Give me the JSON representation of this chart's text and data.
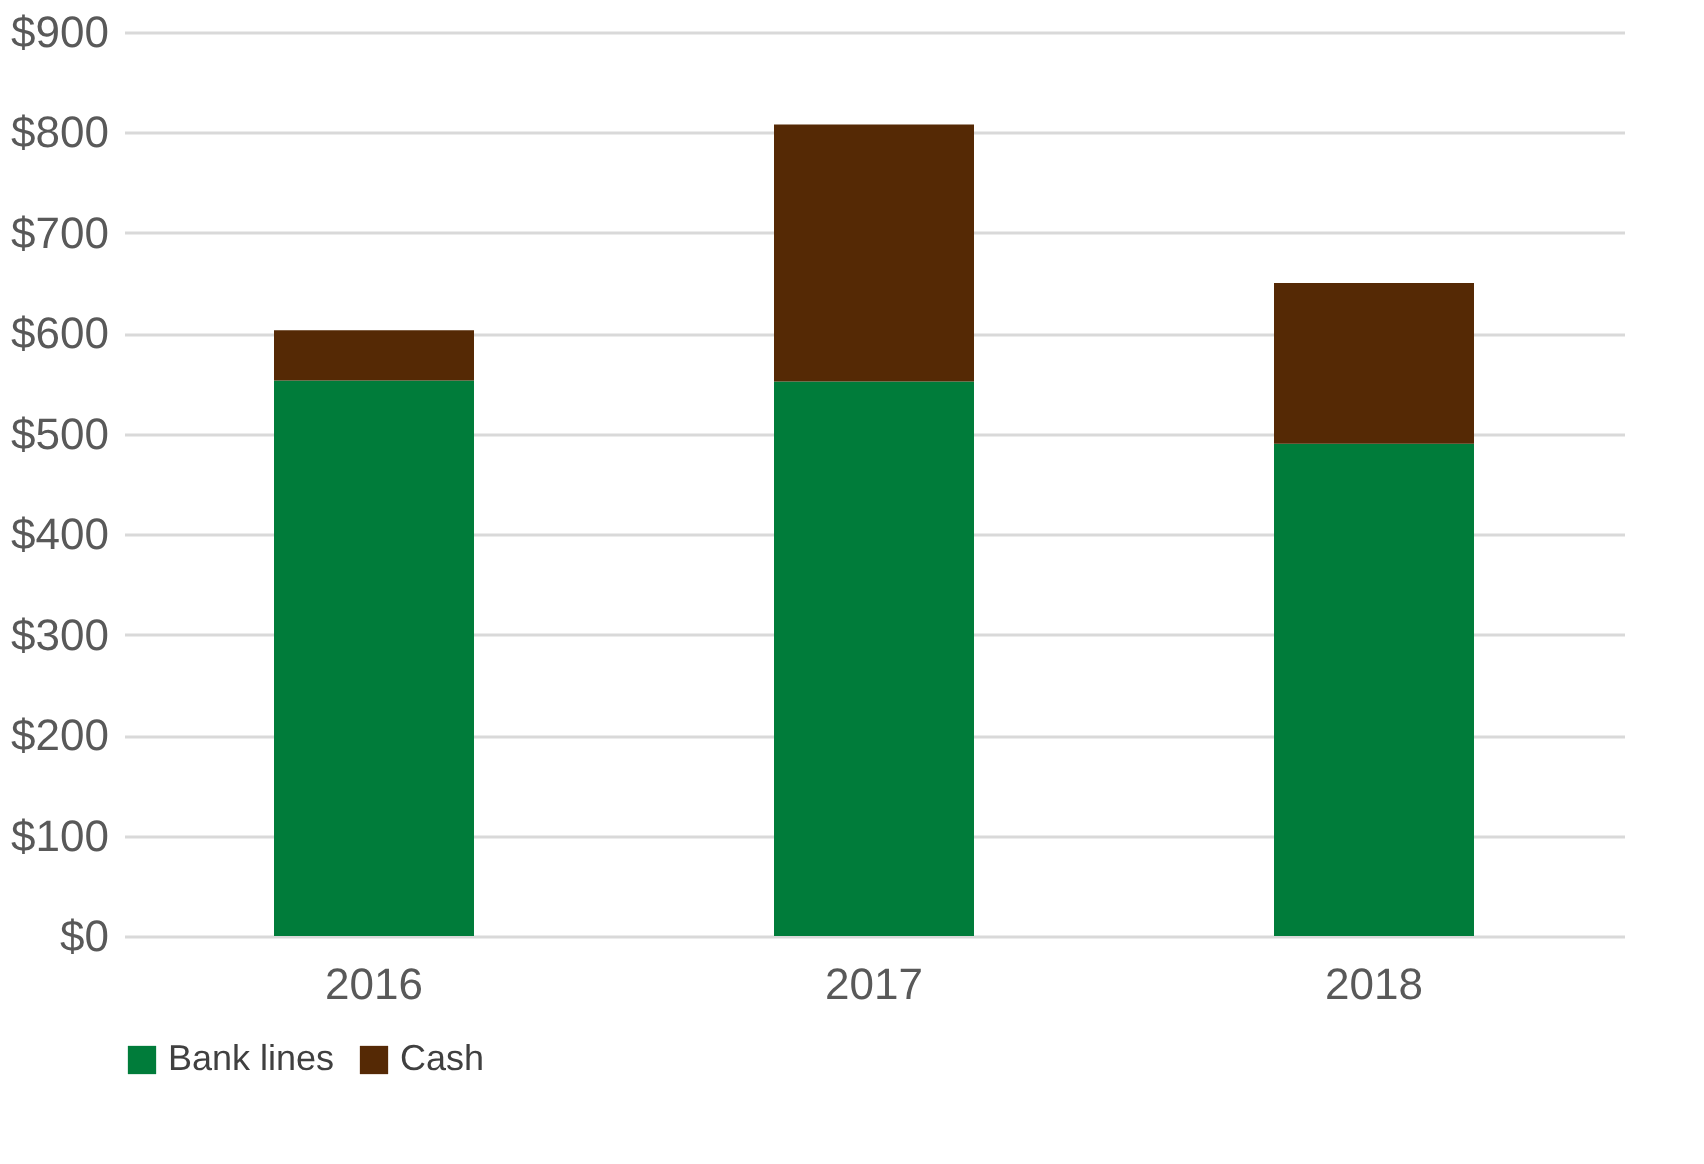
{
  "chart_data": {
    "type": "bar",
    "stacked": true,
    "categories": [
      "2016",
      "2017",
      "2018"
    ],
    "series": [
      {
        "name": "Bank lines",
        "color": "#007c3a",
        "values": [
          553,
          552,
          490
        ]
      },
      {
        "name": "Cash",
        "color": "#552905",
        "values": [
          50,
          256,
          160
        ]
      }
    ],
    "ylim": [
      0,
      900
    ],
    "yticks": [
      {
        "value": 0,
        "label": "$0"
      },
      {
        "value": 100,
        "label": "$100"
      },
      {
        "value": 200,
        "label": "$200"
      },
      {
        "value": 300,
        "label": "$300"
      },
      {
        "value": 400,
        "label": "$400"
      },
      {
        "value": 500,
        "label": "$500"
      },
      {
        "value": 600,
        "label": "$600"
      },
      {
        "value": 700,
        "label": "$700"
      },
      {
        "value": 800,
        "label": "$800"
      },
      {
        "value": 900,
        "label": "$900"
      }
    ],
    "grid": "y",
    "legend": "bottom"
  }
}
